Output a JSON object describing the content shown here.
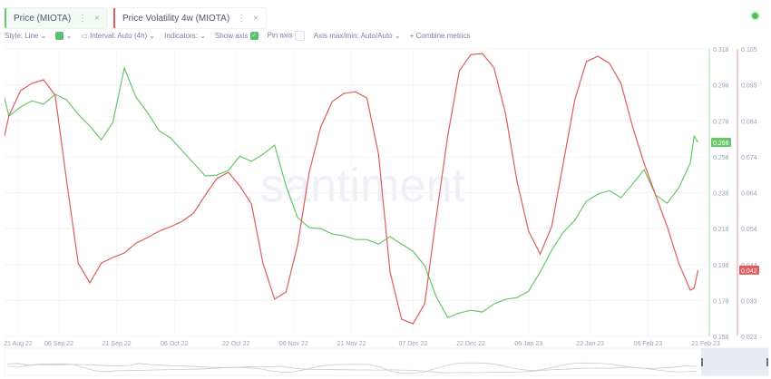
{
  "tabs": [
    {
      "label": "Price (MIOTA)",
      "color": "#68c66a"
    },
    {
      "label": "Price Volatility 4w (MIOTA)",
      "color": "#e05b5b"
    }
  ],
  "toolbar": {
    "style": "Style: Line",
    "interval": "Interval: Auto (4h)",
    "indicators": "Indicators:",
    "show_axis": "Show axis",
    "show_axis_checked": true,
    "pin_axis": "Pin axis",
    "pin_axis_checked": false,
    "axis_maxmin": "Axis max/min: Auto/Auto",
    "combine": "Combine metrics"
  },
  "watermark": "santiment",
  "chart_data": {
    "type": "line",
    "x_ticks": [
      "21 Aug 22",
      "06 Sep 22",
      "21 Sep 22",
      "06 Oct 22",
      "22 Oct 22",
      "06 Nov 22",
      "21 Nov 22",
      "07 Dec 22",
      "22 Dec 22",
      "06 Jan 23",
      "22 Jan 23",
      "06 Feb 23",
      "21 Feb 23"
    ],
    "x_tick_dates": [
      "2022-08-21",
      "2022-09-06",
      "2022-09-21",
      "2022-10-06",
      "2022-10-22",
      "2022-11-06",
      "2022-11-21",
      "2022-12-07",
      "2022-12-22",
      "2023-01-06",
      "2023-01-22",
      "2023-02-06",
      "2023-02-21"
    ],
    "x": [
      "2022-08-18",
      "2022-08-21",
      "2022-08-24",
      "2022-08-27",
      "2022-08-30",
      "2022-09-02",
      "2022-09-05",
      "2022-09-08",
      "2022-09-11",
      "2022-09-14",
      "2022-09-17",
      "2022-09-20",
      "2022-09-23",
      "2022-09-26",
      "2022-09-29",
      "2022-10-02",
      "2022-10-05",
      "2022-10-08",
      "2022-10-11",
      "2022-10-14",
      "2022-10-17",
      "2022-10-20",
      "2022-10-23",
      "2022-10-26",
      "2022-10-29",
      "2022-11-01",
      "2022-11-04",
      "2022-11-07",
      "2022-11-10",
      "2022-11-13",
      "2022-11-16",
      "2022-11-19",
      "2022-11-22",
      "2022-11-25",
      "2022-11-28",
      "2022-12-01",
      "2022-12-04",
      "2022-12-07",
      "2022-12-10",
      "2022-12-13",
      "2022-12-16",
      "2022-12-19",
      "2022-12-22",
      "2022-12-25",
      "2022-12-28",
      "2022-12-31",
      "2023-01-03",
      "2023-01-06",
      "2023-01-09",
      "2023-01-12",
      "2023-01-15",
      "2023-01-18",
      "2023-01-21",
      "2023-01-24",
      "2023-01-27",
      "2023-01-30",
      "2023-02-02",
      "2023-02-05",
      "2023-02-08",
      "2023-02-11",
      "2023-02-14",
      "2023-02-17",
      "2023-02-18",
      "2023-02-19"
    ],
    "series": [
      {
        "name": "Price (MIOTA)",
        "color": "#68c66a",
        "axis": "left",
        "ylim": [
          0.158,
          0.318
        ],
        "ticks": [
          "0.318",
          "0.298",
          "0.278",
          "0.258",
          "0.238",
          "0.218",
          "0.198",
          "0.178",
          "0.158"
        ],
        "last_label": "0.266",
        "values": [
          0.3008,
          0.3074,
          0.2806,
          0.2857,
          0.2892,
          0.2872,
          0.2927,
          0.2897,
          0.2816,
          0.2751,
          0.2675,
          0.2771,
          0.3074,
          0.2912,
          0.2826,
          0.2725,
          0.2685,
          0.2614,
          0.2544,
          0.2473,
          0.2478,
          0.2503,
          0.2584,
          0.2554,
          0.2594,
          0.2645,
          0.2417,
          0.2241,
          0.2185,
          0.218,
          0.215,
          0.214,
          0.2119,
          0.2119,
          0.2094,
          0.2135,
          0.2094,
          0.2054,
          0.1973,
          0.1801,
          0.1685,
          0.171,
          0.1726,
          0.1716,
          0.1761,
          0.1786,
          0.1796,
          0.1832,
          0.1938,
          0.2059,
          0.216,
          0.2226,
          0.2332,
          0.2372,
          0.2392,
          0.2352,
          0.2428,
          0.2508,
          0.2367,
          0.2321,
          0.2407,
          0.2544,
          0.2695,
          0.266
        ]
      },
      {
        "name": "Price Volatility 4w (MIOTA)",
        "color": "#e05b5b",
        "axis": "right",
        "ylim": [
          0.023,
          0.105
        ],
        "ticks": [
          "0.105",
          "0.095",
          "0.084",
          "0.074",
          "0.064",
          "0.054",
          "0.044",
          "0.033",
          "0.023"
        ],
        "last_label": "0.042",
        "values": [
          0.0784,
          0.0711,
          0.0859,
          0.0931,
          0.0952,
          0.0962,
          0.0918,
          0.0672,
          0.0439,
          0.0383,
          0.0439,
          0.0455,
          0.0468,
          0.0496,
          0.0512,
          0.053,
          0.0543,
          0.0558,
          0.0582,
          0.0633,
          0.068,
          0.0698,
          0.0659,
          0.0608,
          0.0439,
          0.0336,
          0.0357,
          0.0491,
          0.0698,
          0.0828,
          0.09,
          0.0923,
          0.0928,
          0.091,
          0.075,
          0.0414,
          0.0279,
          0.0266,
          0.0323,
          0.0569,
          0.0802,
          0.0988,
          0.1034,
          0.1037,
          0.0996,
          0.0866,
          0.0672,
          0.053,
          0.0465,
          0.0543,
          0.0724,
          0.0905,
          0.1014,
          0.1029,
          0.1009,
          0.0952,
          0.0828,
          0.0724,
          0.0633,
          0.0543,
          0.0439,
          0.0362,
          0.0367,
          0.0419
        ]
      }
    ],
    "grid": true
  }
}
